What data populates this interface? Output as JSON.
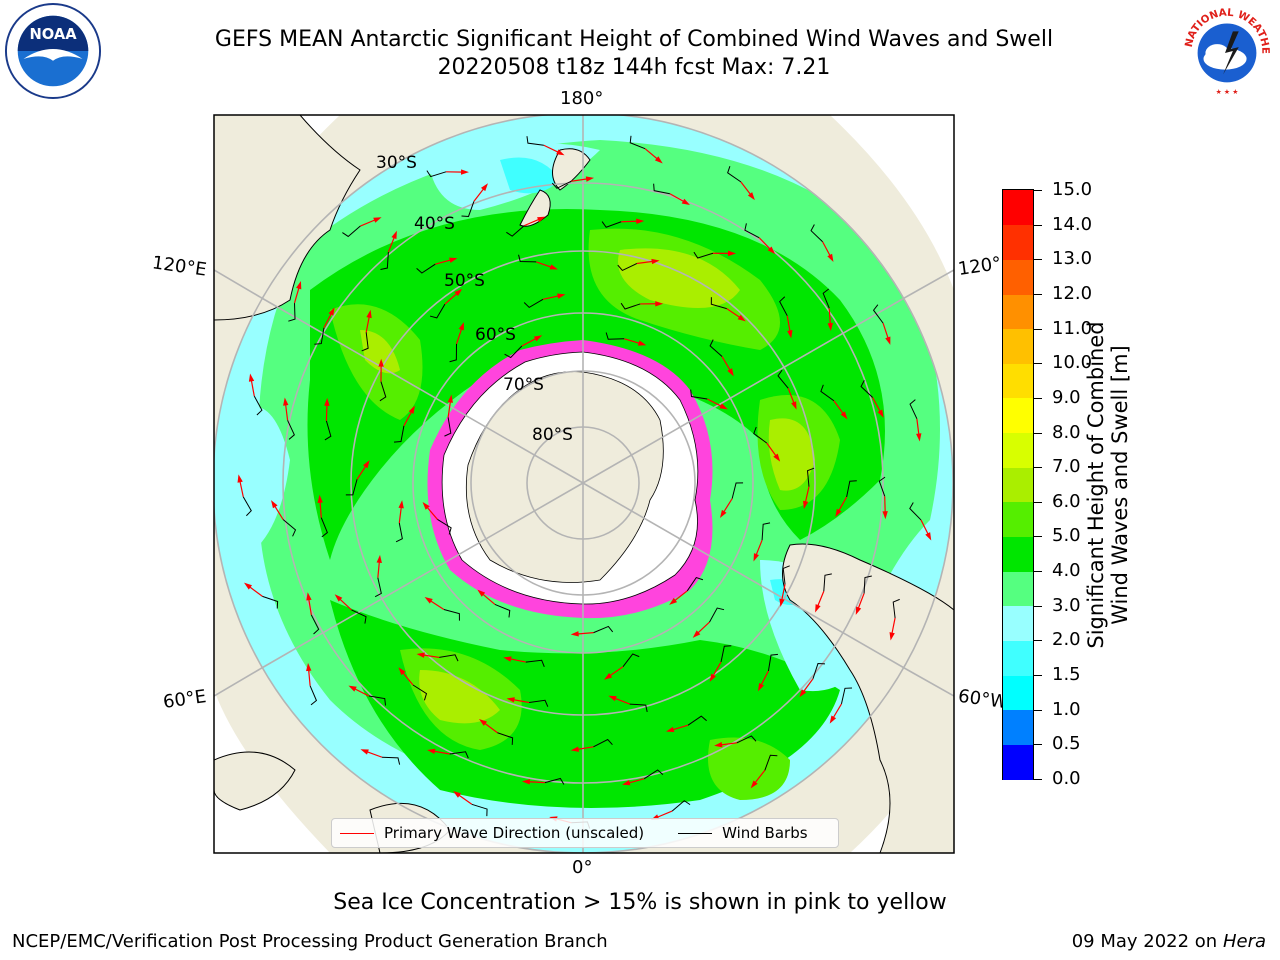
{
  "title": {
    "line1": "GEFS MEAN Antarctic Significant Height of Combined Wind Waves and Swell",
    "line2": "20220508 t18z 144h fcst   Max: 7.21"
  },
  "map": {
    "longitude_labels": {
      "top": "180°",
      "bottom": "0°",
      "left_upper": "120°E",
      "left_lower": "60°E",
      "right_upper": "120°",
      "right_lower": "60°W"
    },
    "latitude_labels": [
      "30°S",
      "40°S",
      "50°S",
      "60°S",
      "70°S",
      "80°S"
    ]
  },
  "colorbar": {
    "label_line1": "Significant Height of Combined",
    "label_line2": "Wind Waves and Swell [m]",
    "ticks": [
      "0.0",
      "0.5",
      "1.0",
      "1.5",
      "2.0",
      "3.0",
      "4.0",
      "5.0",
      "6.0",
      "7.0",
      "8.0",
      "9.0",
      "10.0",
      "11.0",
      "12.0",
      "13.0",
      "14.0",
      "15.0"
    ],
    "colors": [
      "#0000ff",
      "#0080ff",
      "#00ffff",
      "#40ffff",
      "#98ffff",
      "#55ff80",
      "#00e600",
      "#55ee00",
      "#aaee00",
      "#d8ff00",
      "#ffff00",
      "#ffde00",
      "#ffc000",
      "#ff9000",
      "#ff6000",
      "#ff3000",
      "#ff0000"
    ]
  },
  "legend": {
    "wave_direction_label": "Primary Wave Direction (unscaled)",
    "wind_barbs_label": "Wind Barbs",
    "wave_color": "#ff0000",
    "barb_color": "#000000"
  },
  "ice_note": "Sea Ice Concentration > 15% is shown in pink to yellow",
  "footer": {
    "credit": "NCEP/EMC/Verification Post Processing Product Generation Branch",
    "date": "09 May 2022 on",
    "host": "Hera"
  },
  "logos": {
    "noaa": "NOAA",
    "nws": "NATIONAL WEATHER SERVICE"
  },
  "icons": {
    "noaa_logo": "noaa-logo-icon",
    "nws_logo": "nws-logo-icon"
  }
}
